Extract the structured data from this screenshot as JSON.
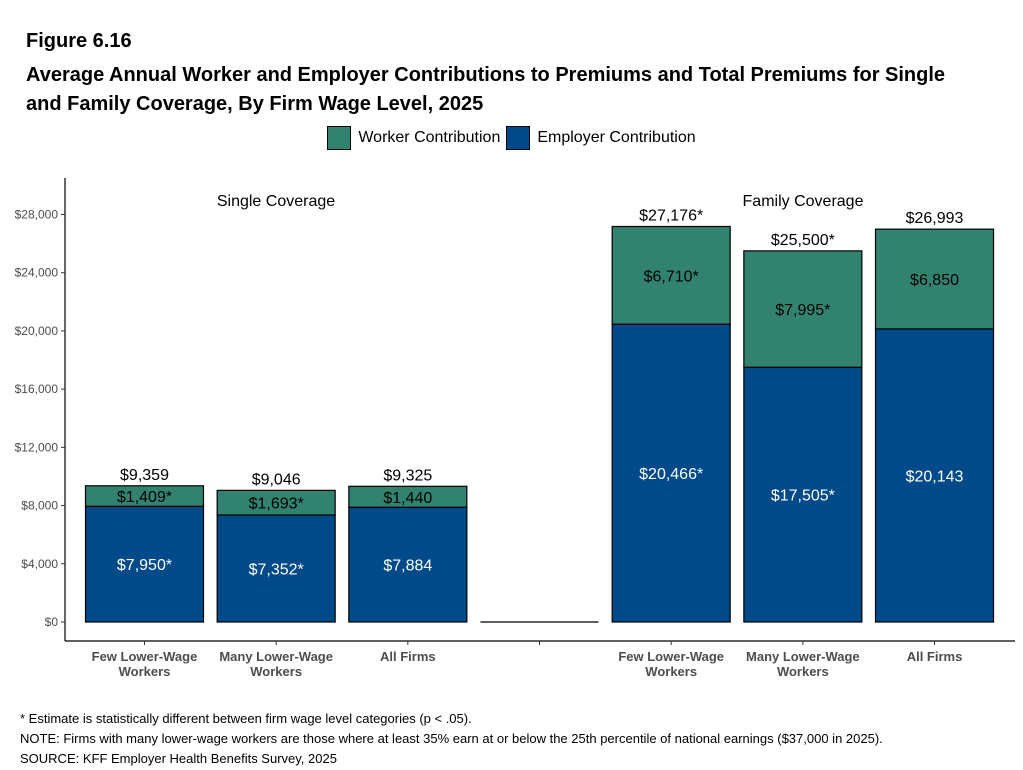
{
  "figure": {
    "label": "Figure 6.16",
    "title": "Average Annual Worker and Employer Contributions to Premiums and Total Premiums for Single and Family Coverage, By Firm Wage Level, 2025"
  },
  "legend": [
    {
      "label": "Worker Contribution",
      "color": "#31836f"
    },
    {
      "label": "Employer Contribution",
      "color": "#004a89"
    }
  ],
  "notes": [
    "* Estimate is statistically different between firm wage level categories (p < .05).",
    "NOTE: Firms with many lower-wage workers are those where at least 35% earn at or below the 25th percentile of national earnings ($37,000 in 2025).",
    "SOURCE: KFF Employer Health Benefits Survey, 2025"
  ],
  "chart_data": {
    "type": "bar",
    "stacked": true,
    "ylim": [
      0,
      30000
    ],
    "yticks": [
      0,
      4000,
      8000,
      12000,
      16000,
      20000,
      24000,
      28000
    ],
    "ytick_labels": [
      "$0",
      "$4,000",
      "$8,000",
      "$12,000",
      "$16,000",
      "$20,000",
      "$24,000",
      "$28,000"
    ],
    "series_names": [
      "Employer Contribution",
      "Worker Contribution"
    ],
    "panel_labels": [
      "Single Coverage",
      "Family Coverage"
    ],
    "categories": [
      {
        "label": "Few Lower-Wage Workers",
        "lines": [
          "Few Lower-Wage",
          "Workers"
        ],
        "employer": 7950,
        "worker": 1409,
        "total": 9359,
        "employer_label": "$7,950*",
        "worker_label": "$1,409*",
        "total_label": "$9,359"
      },
      {
        "label": "Many Lower-Wage Workers",
        "lines": [
          "Many Lower-Wage",
          "Workers"
        ],
        "employer": 7352,
        "worker": 1693,
        "total": 9046,
        "employer_label": "$7,352*",
        "worker_label": "$1,693*",
        "total_label": "$9,046"
      },
      {
        "label": "All Firms",
        "lines": [
          "All Firms"
        ],
        "employer": 7884,
        "worker": 1440,
        "total": 9325,
        "employer_label": "$7,884",
        "worker_label": "$1,440",
        "total_label": "$9,325"
      },
      {
        "label": "",
        "lines": [
          ""
        ],
        "employer": 0,
        "worker": 0,
        "total": 0,
        "employer_label": "",
        "worker_label": "",
        "total_label": ""
      },
      {
        "label": "Few Lower-Wage Workers",
        "lines": [
          "Few Lower-Wage",
          "Workers"
        ],
        "employer": 20466,
        "worker": 6710,
        "total": 27176,
        "employer_label": "$20,466*",
        "worker_label": "$6,710*",
        "total_label": "$27,176*"
      },
      {
        "label": "Many Lower-Wage Workers",
        "lines": [
          "Many Lower-Wage",
          "Workers"
        ],
        "employer": 17505,
        "worker": 7995,
        "total": 25500,
        "employer_label": "$17,505*",
        "worker_label": "$7,995*",
        "total_label": "$25,500*"
      },
      {
        "label": "All Firms",
        "lines": [
          "All Firms"
        ],
        "employer": 20143,
        "worker": 6850,
        "total": 26993,
        "employer_label": "$20,143",
        "worker_label": "$6,850",
        "total_label": "$26,993"
      }
    ]
  }
}
